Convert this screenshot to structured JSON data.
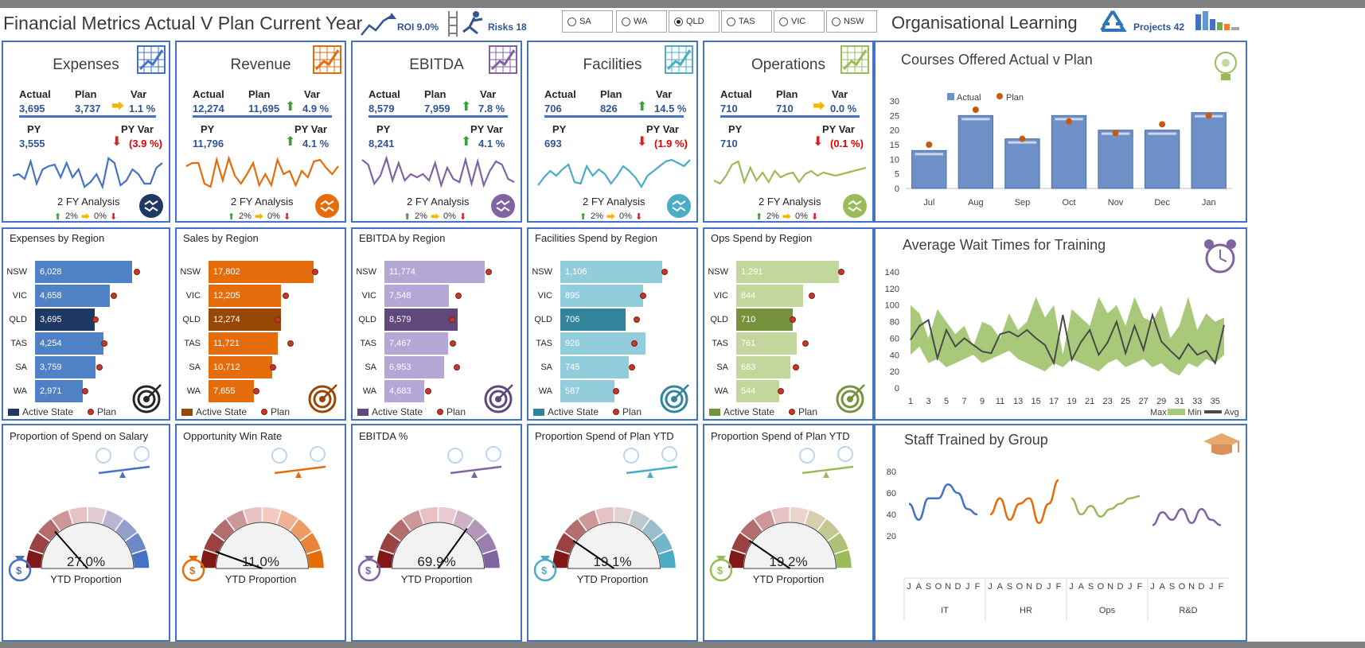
{
  "header": {
    "title": "Financial Metrics Actual V Plan Current Year",
    "roi_label": "ROI 9.0%",
    "risks_label": "Risks 18",
    "states": [
      {
        "label": "SA",
        "selected": false
      },
      {
        "label": "WA",
        "selected": false
      },
      {
        "label": "QLD",
        "selected": true
      },
      {
        "label": "TAS",
        "selected": false
      },
      {
        "label": "VIC",
        "selected": false
      },
      {
        "label": "NSW",
        "selected": false
      }
    ],
    "org_title": "Organisational Learning",
    "projects_label": "Projects 42"
  },
  "kpis": [
    {
      "title": "Expenses",
      "color": "#4472c4",
      "actual": "3,695",
      "plan": "3,737",
      "var": "1.1 %",
      "var_dir": "side",
      "py": "3,555",
      "py_var": "(3.9 %)",
      "py_dir": "down"
    },
    {
      "title": "Revenue",
      "color": "#e46c0a",
      "actual": "12,274",
      "plan": "11,695",
      "var": "4.9 %",
      "var_dir": "up",
      "py": "11,796",
      "py_var": "4.1 %",
      "py_dir": "up"
    },
    {
      "title": "EBITDA",
      "color": "#8064a2",
      "actual": "8,579",
      "plan": "7,959",
      "var": "7.8 %",
      "var_dir": "up",
      "py": "8,241",
      "py_var": "4.1 %",
      "py_dir": "up"
    },
    {
      "title": "Facilities",
      "color": "#4bacc6",
      "actual": "706",
      "plan": "826",
      "var": "14.5 %",
      "var_dir": "up",
      "py": "693",
      "py_var": "(1.9 %)",
      "py_dir": "down"
    },
    {
      "title": "Operations",
      "color": "#9bbb59",
      "actual": "710",
      "plan": "710",
      "var": "0.0 %",
      "var_dir": "side",
      "py": "710",
      "py_var": "(0.1 %)",
      "py_dir": "down"
    }
  ],
  "kpi_labels": {
    "actual": "Actual",
    "plan": "Plan",
    "var": "Var",
    "py": "PY",
    "py_var": "PY Var",
    "fy": "2 FY Analysis",
    "legend_up": "2%",
    "legend_mid": "0%"
  },
  "regions": [
    {
      "title": "Expenses by Region",
      "color": "#4472c4",
      "active_color": "#1f3864",
      "light": "#4f81c7",
      "rows": [
        {
          "state": "NSW",
          "value": 6028,
          "label": "6,028",
          "plan": 6300
        },
        {
          "state": "VIC",
          "value": 4658,
          "label": "4,658",
          "plan": 4900
        },
        {
          "state": "QLD",
          "value": 3695,
          "label": "3,695",
          "plan": 3737
        },
        {
          "state": "TAS",
          "value": 4254,
          "label": "4,254",
          "plan": 4300
        },
        {
          "state": "SA",
          "value": 3759,
          "label": "3,759",
          "plan": 4000
        },
        {
          "state": "WA",
          "value": 2971,
          "label": "2,971",
          "plan": 3100
        }
      ],
      "max": 7000
    },
    {
      "title": "Sales by Region",
      "color": "#e46c0a",
      "active_color": "#974706",
      "light": "#e46c0a",
      "rows": [
        {
          "state": "NSW",
          "value": 17802,
          "label": "17,802",
          "plan": 18000
        },
        {
          "state": "VIC",
          "value": 12205,
          "label": "12,205",
          "plan": 13000
        },
        {
          "state": "QLD",
          "value": 12274,
          "label": "12,274",
          "plan": 11695
        },
        {
          "state": "TAS",
          "value": 11721,
          "label": "11,721",
          "plan": 13800
        },
        {
          "state": "SA",
          "value": 10712,
          "label": "10,712",
          "plan": 10900
        },
        {
          "state": "WA",
          "value": 7655,
          "label": "7,655",
          "plan": 8100
        }
      ],
      "max": 19500
    },
    {
      "title": "EBITDA by Region",
      "color": "#b4a7d6",
      "active_color": "#5f497a",
      "light": "#b4a7d6",
      "rows": [
        {
          "state": "NSW",
          "value": 11774,
          "label": "11,774",
          "plan": 12200
        },
        {
          "state": "VIC",
          "value": 7548,
          "label": "7,548",
          "plan": 8700
        },
        {
          "state": "QLD",
          "value": 8579,
          "label": "8,579",
          "plan": 7959
        },
        {
          "state": "TAS",
          "value": 7467,
          "label": "7,467",
          "plan": 8000
        },
        {
          "state": "SA",
          "value": 6953,
          "label": "6,953",
          "plan": 8500
        },
        {
          "state": "WA",
          "value": 4683,
          "label": "4,683",
          "plan": 5100
        }
      ],
      "max": 13500
    },
    {
      "title": "Facilities Spend by Region",
      "color": "#92cddc",
      "active_color": "#31849b",
      "light": "#92cddc",
      "rows": [
        {
          "state": "NSW",
          "value": 1106,
          "label": "1,106",
          "plan": 1130
        },
        {
          "state": "VIC",
          "value": 895,
          "label": "895",
          "plan": 900
        },
        {
          "state": "QLD",
          "value": 706,
          "label": "706",
          "plan": 826
        },
        {
          "state": "TAS",
          "value": 926,
          "label": "926",
          "plan": 800
        },
        {
          "state": "SA",
          "value": 745,
          "label": "745",
          "plan": 780
        },
        {
          "state": "WA",
          "value": 587,
          "label": "587",
          "plan": 600
        }
      ],
      "max": 1250
    },
    {
      "title": "Ops Spend by Region",
      "color": "#c3d69b",
      "active_color": "#76923c",
      "light": "#c3d69b",
      "rows": [
        {
          "state": "NSW",
          "value": 1291,
          "label": "1,291",
          "plan": 1320
        },
        {
          "state": "VIC",
          "value": 844,
          "label": "844",
          "plan": 950
        },
        {
          "state": "QLD",
          "value": 710,
          "label": "710",
          "plan": 710
        },
        {
          "state": "TAS",
          "value": 761,
          "label": "761",
          "plan": 870
        },
        {
          "state": "SA",
          "value": 683,
          "label": "683",
          "plan": 750
        },
        {
          "state": "WA",
          "value": 544,
          "label": "544",
          "plan": 560
        }
      ],
      "max": 1450
    }
  ],
  "region_legend": {
    "active": "Active State",
    "plan": "Plan"
  },
  "gauges": [
    {
      "title": "Proportion of Spend on Salary",
      "value": "27.0%",
      "fraction": 0.27,
      "color": "#4472c4"
    },
    {
      "title": "Opportunity Win Rate",
      "value": "11.0%",
      "fraction": 0.11,
      "color": "#e46c0a"
    },
    {
      "title": "EBITDA %",
      "value": "69.9%",
      "fraction": 0.699,
      "color": "#8064a2"
    },
    {
      "title": "Proportion Spend of Plan YTD",
      "value": "19.1%",
      "fraction": 0.191,
      "color": "#4bacc6"
    },
    {
      "title": "Proportion Spend of Plan YTD",
      "value": "19.2%",
      "fraction": 0.192,
      "color": "#9bbb59"
    }
  ],
  "gauge_caption": "YTD Proportion",
  "chart_data": [
    {
      "type": "bar",
      "title": "Courses Offered  Actual v Plan",
      "categories": [
        "Jul",
        "Aug",
        "Sep",
        "Oct",
        "Nov",
        "Dec",
        "Jan"
      ],
      "series": [
        {
          "name": "Actual",
          "values": [
            13,
            25,
            17,
            25,
            20,
            20,
            26
          ]
        },
        {
          "name": "Plan",
          "values": [
            15,
            27,
            17,
            23,
            19,
            22,
            25
          ]
        }
      ],
      "ylim": [
        0,
        30
      ],
      "yticks": [
        0,
        5,
        10,
        15,
        20,
        25,
        30
      ],
      "legend": "top"
    },
    {
      "type": "line",
      "title": "Average  Wait Times for Training",
      "x": [
        1,
        2,
        3,
        4,
        5,
        6,
        7,
        8,
        9,
        10,
        11,
        12,
        13,
        14,
        15,
        16,
        17,
        18,
        19,
        20,
        21,
        22,
        23,
        24,
        25,
        26,
        27,
        28,
        29,
        30,
        31,
        32,
        33,
        34,
        35,
        36
      ],
      "xticks": [
        1,
        3,
        5,
        7,
        9,
        11,
        13,
        15,
        17,
        19,
        21,
        23,
        25,
        27,
        29,
        31,
        33,
        35
      ],
      "series": [
        {
          "name": "Max",
          "values": [
            100,
            90,
            60,
            95,
            80,
            65,
            75,
            50,
            80,
            75,
            60,
            90,
            70,
            80,
            110,
            85,
            100,
            40,
            95,
            85,
            75,
            110,
            90,
            100,
            75,
            110,
            85,
            80,
            100,
            60,
            75,
            110,
            70,
            90,
            80,
            85
          ]
        },
        {
          "name": "Min",
          "values": [
            40,
            50,
            30,
            35,
            25,
            30,
            35,
            40,
            30,
            35,
            40,
            45,
            35,
            30,
            25,
            20,
            30,
            25,
            35,
            30,
            25,
            20,
            30,
            35,
            25,
            30,
            35,
            25,
            30,
            20,
            15,
            30,
            25,
            35,
            30,
            40
          ]
        },
        {
          "name": "Avg",
          "values": [
            58,
            75,
            82,
            36,
            70,
            50,
            60,
            52,
            44,
            42,
            65,
            68,
            62,
            70,
            60,
            52,
            30,
            88,
            34,
            55,
            70,
            40,
            55,
            80,
            42,
            75,
            46,
            88,
            56,
            45,
            35,
            53,
            40,
            45,
            30,
            76
          ]
        }
      ],
      "ylim": [
        0,
        140
      ],
      "yticks": [
        0,
        20,
        40,
        60,
        80,
        100,
        120,
        140
      ],
      "legend": "bottom-right"
    },
    {
      "type": "line",
      "title": "Staff Trained by Group",
      "groups": [
        {
          "name": "IT",
          "color": "#4472c4",
          "values": [
            50,
            35,
            55,
            55,
            68,
            60,
            45,
            40
          ]
        },
        {
          "name": "HR",
          "color": "#e46c0a",
          "values": [
            40,
            55,
            35,
            50,
            55,
            32,
            50,
            72
          ]
        },
        {
          "name": "Ops",
          "color": "#9bbb59",
          "values": [
            55,
            40,
            48,
            38,
            45,
            50,
            55,
            57
          ]
        },
        {
          "name": "R&D",
          "color": "#8064a2",
          "values": [
            30,
            42,
            35,
            45,
            32,
            45,
            35,
            30
          ]
        }
      ],
      "month_labels": [
        "J",
        "A",
        "S",
        "O",
        "N",
        "D",
        "J",
        "F"
      ],
      "ylim": [
        0,
        80
      ],
      "yticks": [
        20,
        40,
        60,
        80
      ]
    }
  ]
}
